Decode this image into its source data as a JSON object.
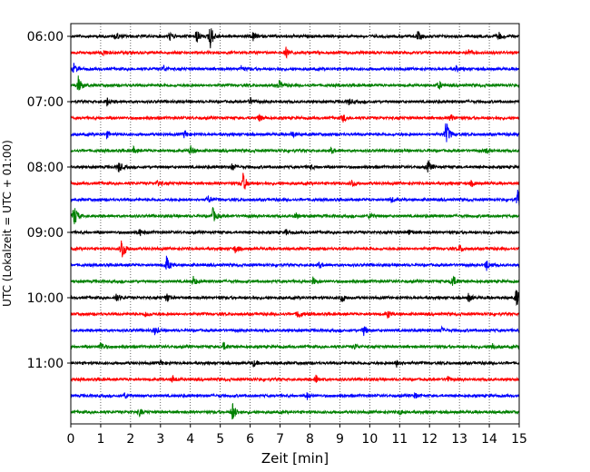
{
  "chart_data": {
    "type": "line",
    "title": "",
    "xlabel": "Zeit  [min]",
    "ylabel": "UTC (Lokalzeit = UTC + 01:00)",
    "xlim": [
      0,
      15
    ],
    "x_ticks": [
      "0",
      "1",
      "2",
      "3",
      "4",
      "5",
      "6",
      "7",
      "8",
      "9",
      "10",
      "11",
      "12",
      "13",
      "14",
      "15"
    ],
    "y_tick_labels": [
      "06:00",
      "07:00",
      "08:00",
      "09:00",
      "10:00",
      "11:00"
    ],
    "trace_interval_minutes": 15,
    "grid": "vertical dotted lines at each minute",
    "trace_colors": [
      "#000000",
      "#ff0000",
      "#0000ff",
      "#008000"
    ],
    "traces": [
      {
        "start": "06:00",
        "events": [
          [
            4.65,
            1.0
          ],
          [
            4.2,
            0.5
          ],
          [
            1.5,
            0.3
          ],
          [
            3.3,
            0.3
          ],
          [
            6.1,
            0.3
          ],
          [
            11.6,
            0.35
          ],
          [
            14.3,
            0.3
          ]
        ]
      },
      {
        "start": "06:15",
        "events": [
          [
            7.2,
            0.35
          ],
          [
            1.1,
            0.25
          ],
          [
            13.3,
            0.2
          ]
        ]
      },
      {
        "start": "06:30",
        "events": [
          [
            0.1,
            0.35
          ],
          [
            3.1,
            0.25
          ],
          [
            5.7,
            0.2
          ],
          [
            12.9,
            0.2
          ]
        ]
      },
      {
        "start": "06:45",
        "events": [
          [
            0.25,
            0.6
          ],
          [
            6.95,
            0.35
          ],
          [
            12.3,
            0.3
          ]
        ]
      },
      {
        "start": "07:00",
        "events": [
          [
            1.2,
            0.3
          ],
          [
            6.0,
            0.25
          ],
          [
            9.3,
            0.2
          ]
        ]
      },
      {
        "start": "07:15",
        "events": [
          [
            6.3,
            0.25
          ],
          [
            9.1,
            0.3
          ],
          [
            12.7,
            0.25
          ]
        ]
      },
      {
        "start": "07:30",
        "events": [
          [
            12.55,
            1.0
          ],
          [
            3.8,
            0.3
          ],
          [
            7.4,
            0.25
          ],
          [
            1.2,
            0.2
          ]
        ]
      },
      {
        "start": "07:45",
        "events": [
          [
            4.0,
            0.35
          ],
          [
            8.7,
            0.2
          ],
          [
            2.1,
            0.2
          ],
          [
            13.9,
            0.2
          ]
        ]
      },
      {
        "start": "08:00",
        "events": [
          [
            1.6,
            0.4
          ],
          [
            11.95,
            0.45
          ],
          [
            5.4,
            0.25
          ],
          [
            8.0,
            0.2
          ]
        ]
      },
      {
        "start": "08:15",
        "events": [
          [
            5.75,
            0.8
          ],
          [
            2.9,
            0.25
          ],
          [
            9.4,
            0.25
          ],
          [
            13.4,
            0.2
          ]
        ]
      },
      {
        "start": "08:30",
        "events": [
          [
            14.95,
            0.7
          ],
          [
            4.6,
            0.25
          ],
          [
            10.7,
            0.2
          ]
        ]
      },
      {
        "start": "08:45",
        "events": [
          [
            0.1,
            0.9
          ],
          [
            4.75,
            0.55
          ],
          [
            7.5,
            0.25
          ],
          [
            10.0,
            0.25
          ]
        ]
      },
      {
        "start": "09:00",
        "events": [
          [
            2.3,
            0.25
          ],
          [
            7.2,
            0.2
          ],
          [
            11.3,
            0.2
          ]
        ]
      },
      {
        "start": "09:15",
        "events": [
          [
            1.7,
            0.95
          ],
          [
            5.5,
            0.3
          ],
          [
            13.0,
            0.25
          ]
        ]
      },
      {
        "start": "09:30",
        "events": [
          [
            3.2,
            0.6
          ],
          [
            13.9,
            0.4
          ],
          [
            8.3,
            0.2
          ]
        ]
      },
      {
        "start": "09:45",
        "events": [
          [
            12.75,
            0.55
          ],
          [
            4.1,
            0.3
          ],
          [
            8.1,
            0.25
          ]
        ]
      },
      {
        "start": "10:00",
        "events": [
          [
            14.9,
            0.7
          ],
          [
            1.5,
            0.35
          ],
          [
            9.05,
            0.35
          ],
          [
            3.2,
            0.3
          ],
          [
            13.3,
            0.3
          ]
        ]
      },
      {
        "start": "10:15",
        "events": [
          [
            7.6,
            0.35
          ],
          [
            10.6,
            0.25
          ],
          [
            2.5,
            0.2
          ]
        ]
      },
      {
        "start": "10:30",
        "events": [
          [
            9.8,
            0.35
          ],
          [
            2.8,
            0.3
          ],
          [
            12.4,
            0.2
          ]
        ]
      },
      {
        "start": "10:45",
        "events": [
          [
            1.0,
            0.35
          ],
          [
            5.1,
            0.3
          ],
          [
            9.5,
            0.2
          ],
          [
            14.1,
            0.25
          ]
        ]
      },
      {
        "start": "11:00",
        "events": [
          [
            6.1,
            0.25
          ],
          [
            10.9,
            0.25
          ],
          [
            3.0,
            0.2
          ]
        ]
      },
      {
        "start": "11:15",
        "events": [
          [
            3.4,
            0.25
          ],
          [
            8.2,
            0.3
          ],
          [
            12.6,
            0.2
          ]
        ]
      },
      {
        "start": "11:30",
        "events": [
          [
            7.9,
            0.25
          ],
          [
            11.5,
            0.2
          ],
          [
            1.8,
            0.2
          ]
        ]
      },
      {
        "start": "11:45",
        "events": [
          [
            5.4,
            0.75
          ],
          [
            2.3,
            0.25
          ],
          [
            11.0,
            0.2
          ]
        ]
      }
    ]
  }
}
